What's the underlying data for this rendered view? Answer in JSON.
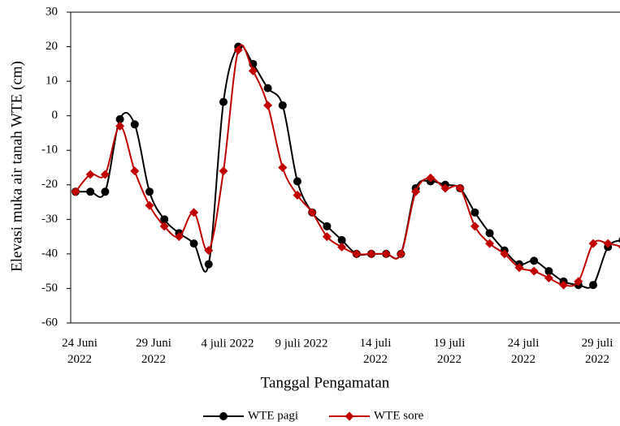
{
  "chart_data": {
    "type": "line",
    "y_label": "Elevasi muka air tanah WTE (cm)",
    "x_label": "Tanggal Pengamatan",
    "categories": [
      "24 Juni 2022",
      null,
      null,
      null,
      null,
      "29 Juni 2022",
      null,
      null,
      null,
      null,
      "4 juli 2022",
      null,
      null,
      null,
      null,
      "9 juli 2022",
      null,
      null,
      null,
      null,
      "14 juli 2022",
      null,
      null,
      null,
      null,
      "19 juli 2022",
      null,
      null,
      null,
      null,
      "24 juli 2022",
      null,
      null,
      null,
      null,
      "29 juli 2022",
      null,
      null
    ],
    "series": [
      {
        "name": "WTE pagi",
        "color": "#000000",
        "marker": "circle",
        "values": [
          -22,
          -22,
          -22,
          -1,
          -2.5,
          -22,
          -30,
          -34,
          -37,
          -43,
          4,
          20,
          15,
          8,
          3,
          -19,
          -28,
          -32,
          -36,
          -40,
          -40,
          -40,
          -40,
          -21,
          -19,
          -20,
          -21,
          -28,
          -34,
          -39,
          -43,
          -42,
          -45,
          -48,
          -49,
          -49,
          -38,
          -36
        ]
      },
      {
        "name": "WTE sore",
        "color": "#c00000",
        "marker": "diamond",
        "values": [
          -22,
          -17,
          -17,
          -3,
          -16,
          -26,
          -32,
          -35,
          -28,
          -39,
          -16,
          19,
          13,
          3,
          -15,
          -23,
          -28,
          -35,
          -38,
          -40,
          -40,
          -40,
          -40,
          -22,
          -18,
          -21,
          -21,
          -32,
          -37,
          -40,
          -44,
          -45,
          -47,
          -49,
          -48,
          -37,
          -37,
          -38
        ]
      }
    ],
    "ylim": [
      -60,
      30
    ],
    "yticks": [
      -60,
      -50,
      -40,
      -30,
      -20,
      -10,
      0,
      10,
      20,
      30
    ],
    "smooth": true,
    "legend": "bottom"
  }
}
